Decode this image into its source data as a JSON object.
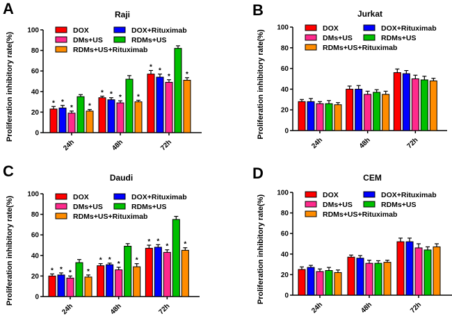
{
  "figure": {
    "series_colors": {
      "DOX": "#ff0000",
      "DOX+Rituximab": "#0000ff",
      "DMs+US": "#ff2a8c",
      "RDMs+US": "#00c000",
      "RDMs+US+Rituximab": "#ff8c00"
    }
  },
  "chart_data": [
    {
      "type": "bar",
      "panel_label": "A",
      "title": "Raji",
      "xlabel": "",
      "ylabel": "Proliferation inhibitory rate(%)",
      "ylim": [
        0,
        100
      ],
      "yticks": [
        "0",
        "20",
        "40",
        "60",
        "80",
        "100"
      ],
      "categories": [
        "24h",
        "48h",
        "72h"
      ],
      "legend": [
        "DOX",
        "DOX+Rituximab",
        "DMs+US",
        "RDMs+US",
        "RDMs+US+Rituximab"
      ],
      "legend_position": "top",
      "series": [
        {
          "name": "DOX",
          "values": [
            23,
            34,
            57
          ],
          "errors": [
            2.5,
            1.5,
            3.5
          ],
          "significant": [
            true,
            true,
            true
          ]
        },
        {
          "name": "DOX+Rituximab",
          "values": [
            24,
            32,
            54
          ],
          "errors": [
            2.5,
            2,
            3
          ],
          "significant": [
            true,
            true,
            true
          ]
        },
        {
          "name": "DMs+US",
          "values": [
            19,
            29,
            49
          ],
          "errors": [
            2,
            2,
            2.5
          ],
          "significant": [
            true,
            true,
            true
          ]
        },
        {
          "name": "RDMs+US",
          "values": [
            35,
            52,
            82
          ],
          "errors": [
            2,
            3.5,
            2.5
          ],
          "significant": [
            false,
            false,
            false
          ]
        },
        {
          "name": "RDMs+US+Rituximab",
          "values": [
            21,
            30,
            51
          ],
          "errors": [
            1.5,
            1.5,
            2.5
          ],
          "significant": [
            true,
            true,
            true
          ]
        }
      ],
      "significance_marker": "*"
    },
    {
      "type": "bar",
      "panel_label": "B",
      "title": "Jurkat",
      "xlabel": "",
      "ylabel": "Proliferation inhibitory rate(%)",
      "ylim": [
        0,
        100
      ],
      "yticks": [
        "0",
        "20",
        "40",
        "60",
        "80",
        "100"
      ],
      "categories": [
        "24h",
        "48h",
        "72h"
      ],
      "legend": [
        "DOX",
        "DOX+Rituximab",
        "DMs+US",
        "RDMs+US",
        "RDMs+US+Rituximab"
      ],
      "legend_position": "top",
      "series": [
        {
          "name": "DOX",
          "values": [
            28,
            40,
            56
          ],
          "errors": [
            2,
            3,
            3.5
          ],
          "significant": [
            false,
            false,
            false
          ]
        },
        {
          "name": "DOX+Rituximab",
          "values": [
            28,
            40,
            55
          ],
          "errors": [
            3,
            3.5,
            3
          ],
          "significant": [
            false,
            false,
            false
          ]
        },
        {
          "name": "DMs+US",
          "values": [
            26,
            35,
            50
          ],
          "errors": [
            2,
            3,
            3.5
          ],
          "significant": [
            false,
            false,
            false
          ]
        },
        {
          "name": "RDMs+US",
          "values": [
            26,
            37,
            49
          ],
          "errors": [
            3,
            2.5,
            3.5
          ],
          "significant": [
            false,
            false,
            false
          ]
        },
        {
          "name": "RDMs+US+Rituximab",
          "values": [
            25,
            35,
            48
          ],
          "errors": [
            2,
            3,
            2.5
          ],
          "significant": [
            false,
            false,
            false
          ]
        }
      ],
      "significance_marker": "*"
    },
    {
      "type": "bar",
      "panel_label": "C",
      "title": "Daudi",
      "xlabel": "",
      "ylabel": "Proliferation inhibitory rate(%)",
      "ylim": [
        0,
        100
      ],
      "yticks": [
        "0",
        "20",
        "40",
        "60",
        "80",
        "100"
      ],
      "categories": [
        "24h",
        "48h",
        "72h"
      ],
      "legend": [
        "DOX",
        "DOX+Rituximab",
        "DMs+US",
        "RDMs+US",
        "RDMs+US+Rituximab"
      ],
      "legend_position": "top",
      "series": [
        {
          "name": "DOX",
          "values": [
            20,
            30,
            47
          ],
          "errors": [
            2,
            2,
            3
          ],
          "significant": [
            true,
            true,
            true
          ]
        },
        {
          "name": "DOX+Rituximab",
          "values": [
            21,
            31,
            48
          ],
          "errors": [
            2,
            1.5,
            2.5
          ],
          "significant": [
            true,
            true,
            true
          ]
        },
        {
          "name": "DMs+US",
          "values": [
            18,
            26,
            43
          ],
          "errors": [
            2,
            2.5,
            2.5
          ],
          "significant": [
            true,
            true,
            true
          ]
        },
        {
          "name": "RDMs+US",
          "values": [
            33,
            49,
            75
          ],
          "errors": [
            3,
            2.5,
            3
          ],
          "significant": [
            false,
            false,
            false
          ]
        },
        {
          "name": "RDMs+US+Rituximab",
          "values": [
            19,
            29,
            45
          ],
          "errors": [
            2,
            3,
            2.5
          ],
          "significant": [
            true,
            true,
            true
          ]
        }
      ],
      "significance_marker": "*"
    },
    {
      "type": "bar",
      "panel_label": "D",
      "title": "CEM",
      "xlabel": "",
      "ylabel": "Proliferation inhibitory rate(%)",
      "ylim": [
        0,
        100
      ],
      "yticks": [
        "0",
        "20",
        "40",
        "60",
        "80",
        "100"
      ],
      "categories": [
        "24h",
        "48h",
        "72h"
      ],
      "legend": [
        "DOX",
        "DOX+Rituximab",
        "DMs+US",
        "RDMs+US",
        "RDMs+US+Rituximab"
      ],
      "legend_position": "top",
      "series": [
        {
          "name": "DOX",
          "values": [
            25,
            37,
            52
          ],
          "errors": [
            2.5,
            2,
            3.5
          ],
          "significant": [
            false,
            false,
            false
          ]
        },
        {
          "name": "DOX+Rituximab",
          "values": [
            27,
            36,
            52
          ],
          "errors": [
            2,
            2.5,
            3.5
          ],
          "significant": [
            false,
            false,
            false
          ]
        },
        {
          "name": "DMs+US",
          "values": [
            23,
            31,
            46
          ],
          "errors": [
            2.5,
            3,
            4
          ],
          "significant": [
            false,
            false,
            false
          ]
        },
        {
          "name": "RDMs+US",
          "values": [
            24,
            31,
            44
          ],
          "errors": [
            3,
            2.5,
            3
          ],
          "significant": [
            false,
            false,
            false
          ]
        },
        {
          "name": "RDMs+US+Rituximab",
          "values": [
            22,
            32,
            47
          ],
          "errors": [
            2.5,
            2,
            3
          ],
          "significant": [
            false,
            false,
            false
          ]
        }
      ],
      "significance_marker": "*"
    }
  ]
}
